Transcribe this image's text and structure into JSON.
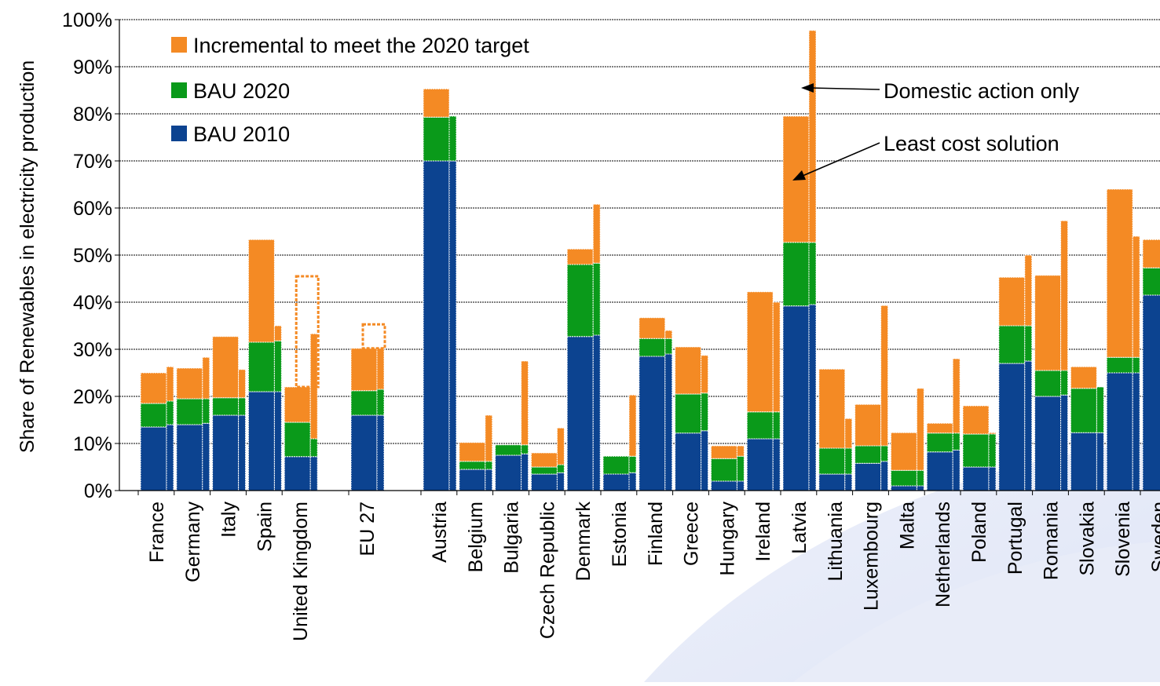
{
  "chart_data": {
    "type": "bar",
    "title": "",
    "xlabel": "",
    "ylabel": "Share of Renewables in electricity production",
    "ylim": [
      0,
      1.0
    ],
    "y_ticks": [
      "0%",
      "10%",
      "20%",
      "30%",
      "40%",
      "50%",
      "60%",
      "70%",
      "80%",
      "90%",
      "100%"
    ],
    "grid": true,
    "legend_position": "top-left",
    "legend": [
      {
        "label": "Incremental to meet the 2020 target",
        "color": "#F48A24"
      },
      {
        "label": "BAU 2020",
        "color": "#0A9A1A"
      },
      {
        "label": "BAU 2010",
        "color": "#0C4390"
      }
    ],
    "bar_pair_note": "For each country the left bar is the domestic-action-only case and the right bar is the least cost solution.",
    "annotations": [
      "Domestic action only",
      "Least cost solution"
    ],
    "colors": {
      "incremental": "#F48A24",
      "bau2020": "#0A9A1A",
      "bau2010": "#0C4390",
      "target_outline": "#F48A24",
      "grid": "#000000"
    },
    "categories": [
      "France",
      "Germany",
      "Italy",
      "Spain",
      "United Kingdom",
      "EU 27",
      "Austria",
      "Belgium",
      "Bulgaria",
      "Czech Republic",
      "Denmark",
      "Estonia",
      "Finland",
      "Greece",
      "Hungary",
      "Ireland",
      "Latvia",
      "Lithuania",
      "Luxembourg",
      "Malta",
      "Netherlands",
      "Poland",
      "Portugal",
      "Romania",
      "Slovakia",
      "Slovenia",
      "Sweden"
    ],
    "countries": [
      {
        "name": "France",
        "domestic": [
          0.135,
          0.185,
          0.25
        ],
        "least_cost": [
          0.14,
          0.19,
          0.263
        ]
      },
      {
        "name": "Germany",
        "domestic": [
          0.14,
          0.195,
          0.26
        ],
        "least_cost": [
          0.143,
          0.195,
          0.283
        ]
      },
      {
        "name": "Italy",
        "domestic": [
          0.16,
          0.197,
          0.327
        ],
        "least_cost": [
          0.16,
          0.197,
          0.257
        ]
      },
      {
        "name": "Spain",
        "domestic": [
          0.21,
          0.315,
          0.533
        ],
        "least_cost": [
          0.21,
          0.318,
          0.35
        ]
      },
      {
        "name": "United Kingdom",
        "domestic": [
          0.072,
          0.145,
          0.22
        ],
        "least_cost": [
          0.072,
          0.11,
          0.333
        ],
        "target": 0.455
      },
      {
        "name": "EU 27",
        "domestic": [
          0.16,
          0.212,
          0.302
        ],
        "least_cost": [
          0.16,
          0.215,
          0.302
        ],
        "target": 0.353
      },
      {
        "name": "Austria",
        "domestic": [
          0.7,
          0.793,
          0.853
        ],
        "least_cost": [
          0.7,
          0.795,
          0.795
        ]
      },
      {
        "name": "Belgium",
        "domestic": [
          0.045,
          0.062,
          0.102
        ],
        "least_cost": [
          0.045,
          0.062,
          0.16
        ]
      },
      {
        "name": "Bulgaria",
        "domestic": [
          0.075,
          0.097,
          0.097
        ],
        "least_cost": [
          0.078,
          0.097,
          0.275
        ]
      },
      {
        "name": "Czech Republic",
        "domestic": [
          0.035,
          0.05,
          0.08
        ],
        "least_cost": [
          0.038,
          0.055,
          0.133
        ]
      },
      {
        "name": "Denmark",
        "domestic": [
          0.327,
          0.48,
          0.513
        ],
        "least_cost": [
          0.33,
          0.483,
          0.608
        ]
      },
      {
        "name": "Estonia",
        "domestic": [
          0.035,
          0.073,
          0.073
        ],
        "least_cost": [
          0.038,
          0.073,
          0.203
        ]
      },
      {
        "name": "Finland",
        "domestic": [
          0.285,
          0.323,
          0.367
        ],
        "least_cost": [
          0.29,
          0.323,
          0.34
        ]
      },
      {
        "name": "Greece",
        "domestic": [
          0.122,
          0.205,
          0.305
        ],
        "least_cost": [
          0.127,
          0.207,
          0.287
        ]
      },
      {
        "name": "Hungary",
        "domestic": [
          0.02,
          0.068,
          0.095
        ],
        "least_cost": [
          0.02,
          0.073,
          0.095
        ]
      },
      {
        "name": "Ireland",
        "domestic": [
          0.11,
          0.167,
          0.422
        ],
        "least_cost": [
          0.11,
          0.167,
          0.4
        ]
      },
      {
        "name": "Latvia",
        "domestic": [
          0.392,
          0.527,
          0.795
        ],
        "least_cost": [
          0.395,
          0.527,
          0.977
        ]
      },
      {
        "name": "Lithuania",
        "domestic": [
          0.035,
          0.09,
          0.258
        ],
        "least_cost": [
          0.035,
          0.09,
          0.153
        ]
      },
      {
        "name": "Luxembourg",
        "domestic": [
          0.058,
          0.095,
          0.183
        ],
        "least_cost": [
          0.062,
          0.095,
          0.393
        ]
      },
      {
        "name": "Malta",
        "domestic": [
          0.01,
          0.043,
          0.123
        ],
        "least_cost": [
          0.01,
          0.043,
          0.217
        ]
      },
      {
        "name": "Netherlands",
        "domestic": [
          0.082,
          0.122,
          0.143
        ],
        "least_cost": [
          0.086,
          0.122,
          0.28
        ]
      },
      {
        "name": "Poland",
        "domestic": [
          0.05,
          0.12,
          0.18
        ],
        "least_cost": [
          0.05,
          0.12,
          0.123
        ]
      },
      {
        "name": "Portugal",
        "domestic": [
          0.27,
          0.35,
          0.453
        ],
        "least_cost": [
          0.275,
          0.35,
          0.5
        ]
      },
      {
        "name": "Romania",
        "domestic": [
          0.2,
          0.255,
          0.457
        ],
        "least_cost": [
          0.203,
          0.255,
          0.573
        ]
      },
      {
        "name": "Slovakia",
        "domestic": [
          0.123,
          0.217,
          0.263
        ],
        "least_cost": [
          0.123,
          0.22,
          0.22
        ]
      },
      {
        "name": "Slovenia",
        "domestic": [
          0.25,
          0.283,
          0.64
        ],
        "least_cost": [
          0.25,
          0.283,
          0.54
        ]
      },
      {
        "name": "Sweden",
        "domestic": [
          0.415,
          0.473,
          0.533
        ],
        "least_cost": [
          0.415,
          0.473,
          0.515
        ]
      }
    ]
  }
}
